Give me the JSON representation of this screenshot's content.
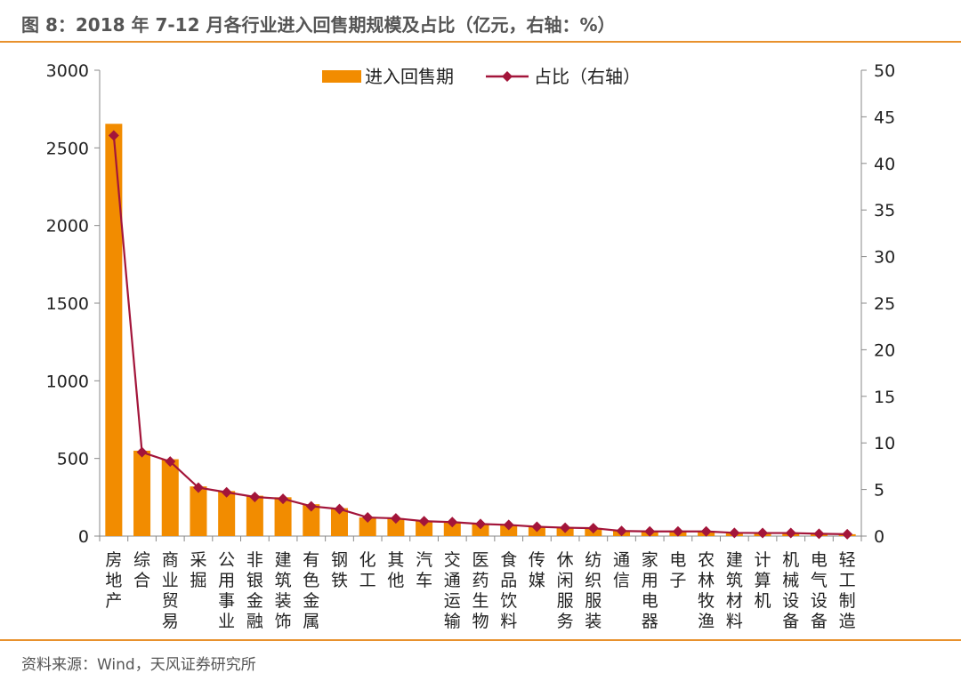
{
  "title": "图 8：2018 年 7-12 月各行业进入回售期规模及占比（亿元，右轴：%）",
  "source": "资料来源：Wind，天风证券研究所",
  "colors": {
    "bar": "#f28c00",
    "line": "#a3153a",
    "rule": "#e8912d"
  },
  "chart_data": {
    "type": "bar",
    "categories": [
      "房地产",
      "综合",
      "商业贸易",
      "采掘",
      "公用事业",
      "非银金融",
      "建筑装饰",
      "有色金属",
      "钢铁",
      "化工",
      "其他",
      "汽车",
      "交通运输",
      "医药生物",
      "食品饮料",
      "传媒",
      "休闲服务",
      "纺织服装",
      "通信",
      "家用电器",
      "电子",
      "农林牧渔",
      "建筑材料",
      "计算机",
      "机械设备",
      "电气设备",
      "轻工制造"
    ],
    "series": [
      {
        "name": "进入回售期",
        "type": "bar",
        "axis": "left",
        "values": [
          2655,
          550,
          495,
          320,
          290,
          260,
          250,
          205,
          180,
          120,
          115,
          100,
          92,
          78,
          72,
          62,
          58,
          52,
          35,
          32,
          32,
          32,
          25,
          22,
          22,
          18,
          12
        ]
      },
      {
        "name": "占比（右轴）",
        "type": "line",
        "axis": "right",
        "marker": "diamond",
        "values": [
          43.0,
          9.0,
          8.0,
          5.2,
          4.7,
          4.2,
          4.0,
          3.2,
          2.9,
          2.0,
          1.9,
          1.6,
          1.5,
          1.3,
          1.2,
          1.0,
          0.9,
          0.85,
          0.55,
          0.5,
          0.5,
          0.5,
          0.35,
          0.33,
          0.33,
          0.25,
          0.2
        ]
      }
    ],
    "y_left": {
      "min": 0,
      "max": 3000,
      "ticks": [
        "0",
        "500",
        "1000",
        "1500",
        "2000",
        "2500",
        "3000"
      ]
    },
    "y_right": {
      "min": 0,
      "max": 50,
      "ticks": [
        "0",
        "5",
        "10",
        "15",
        "20",
        "25",
        "30",
        "35",
        "40",
        "45",
        "50"
      ]
    },
    "legend": {
      "position": "top-center",
      "items": [
        "进入回售期",
        "占比（右轴）"
      ]
    },
    "grid": false
  }
}
